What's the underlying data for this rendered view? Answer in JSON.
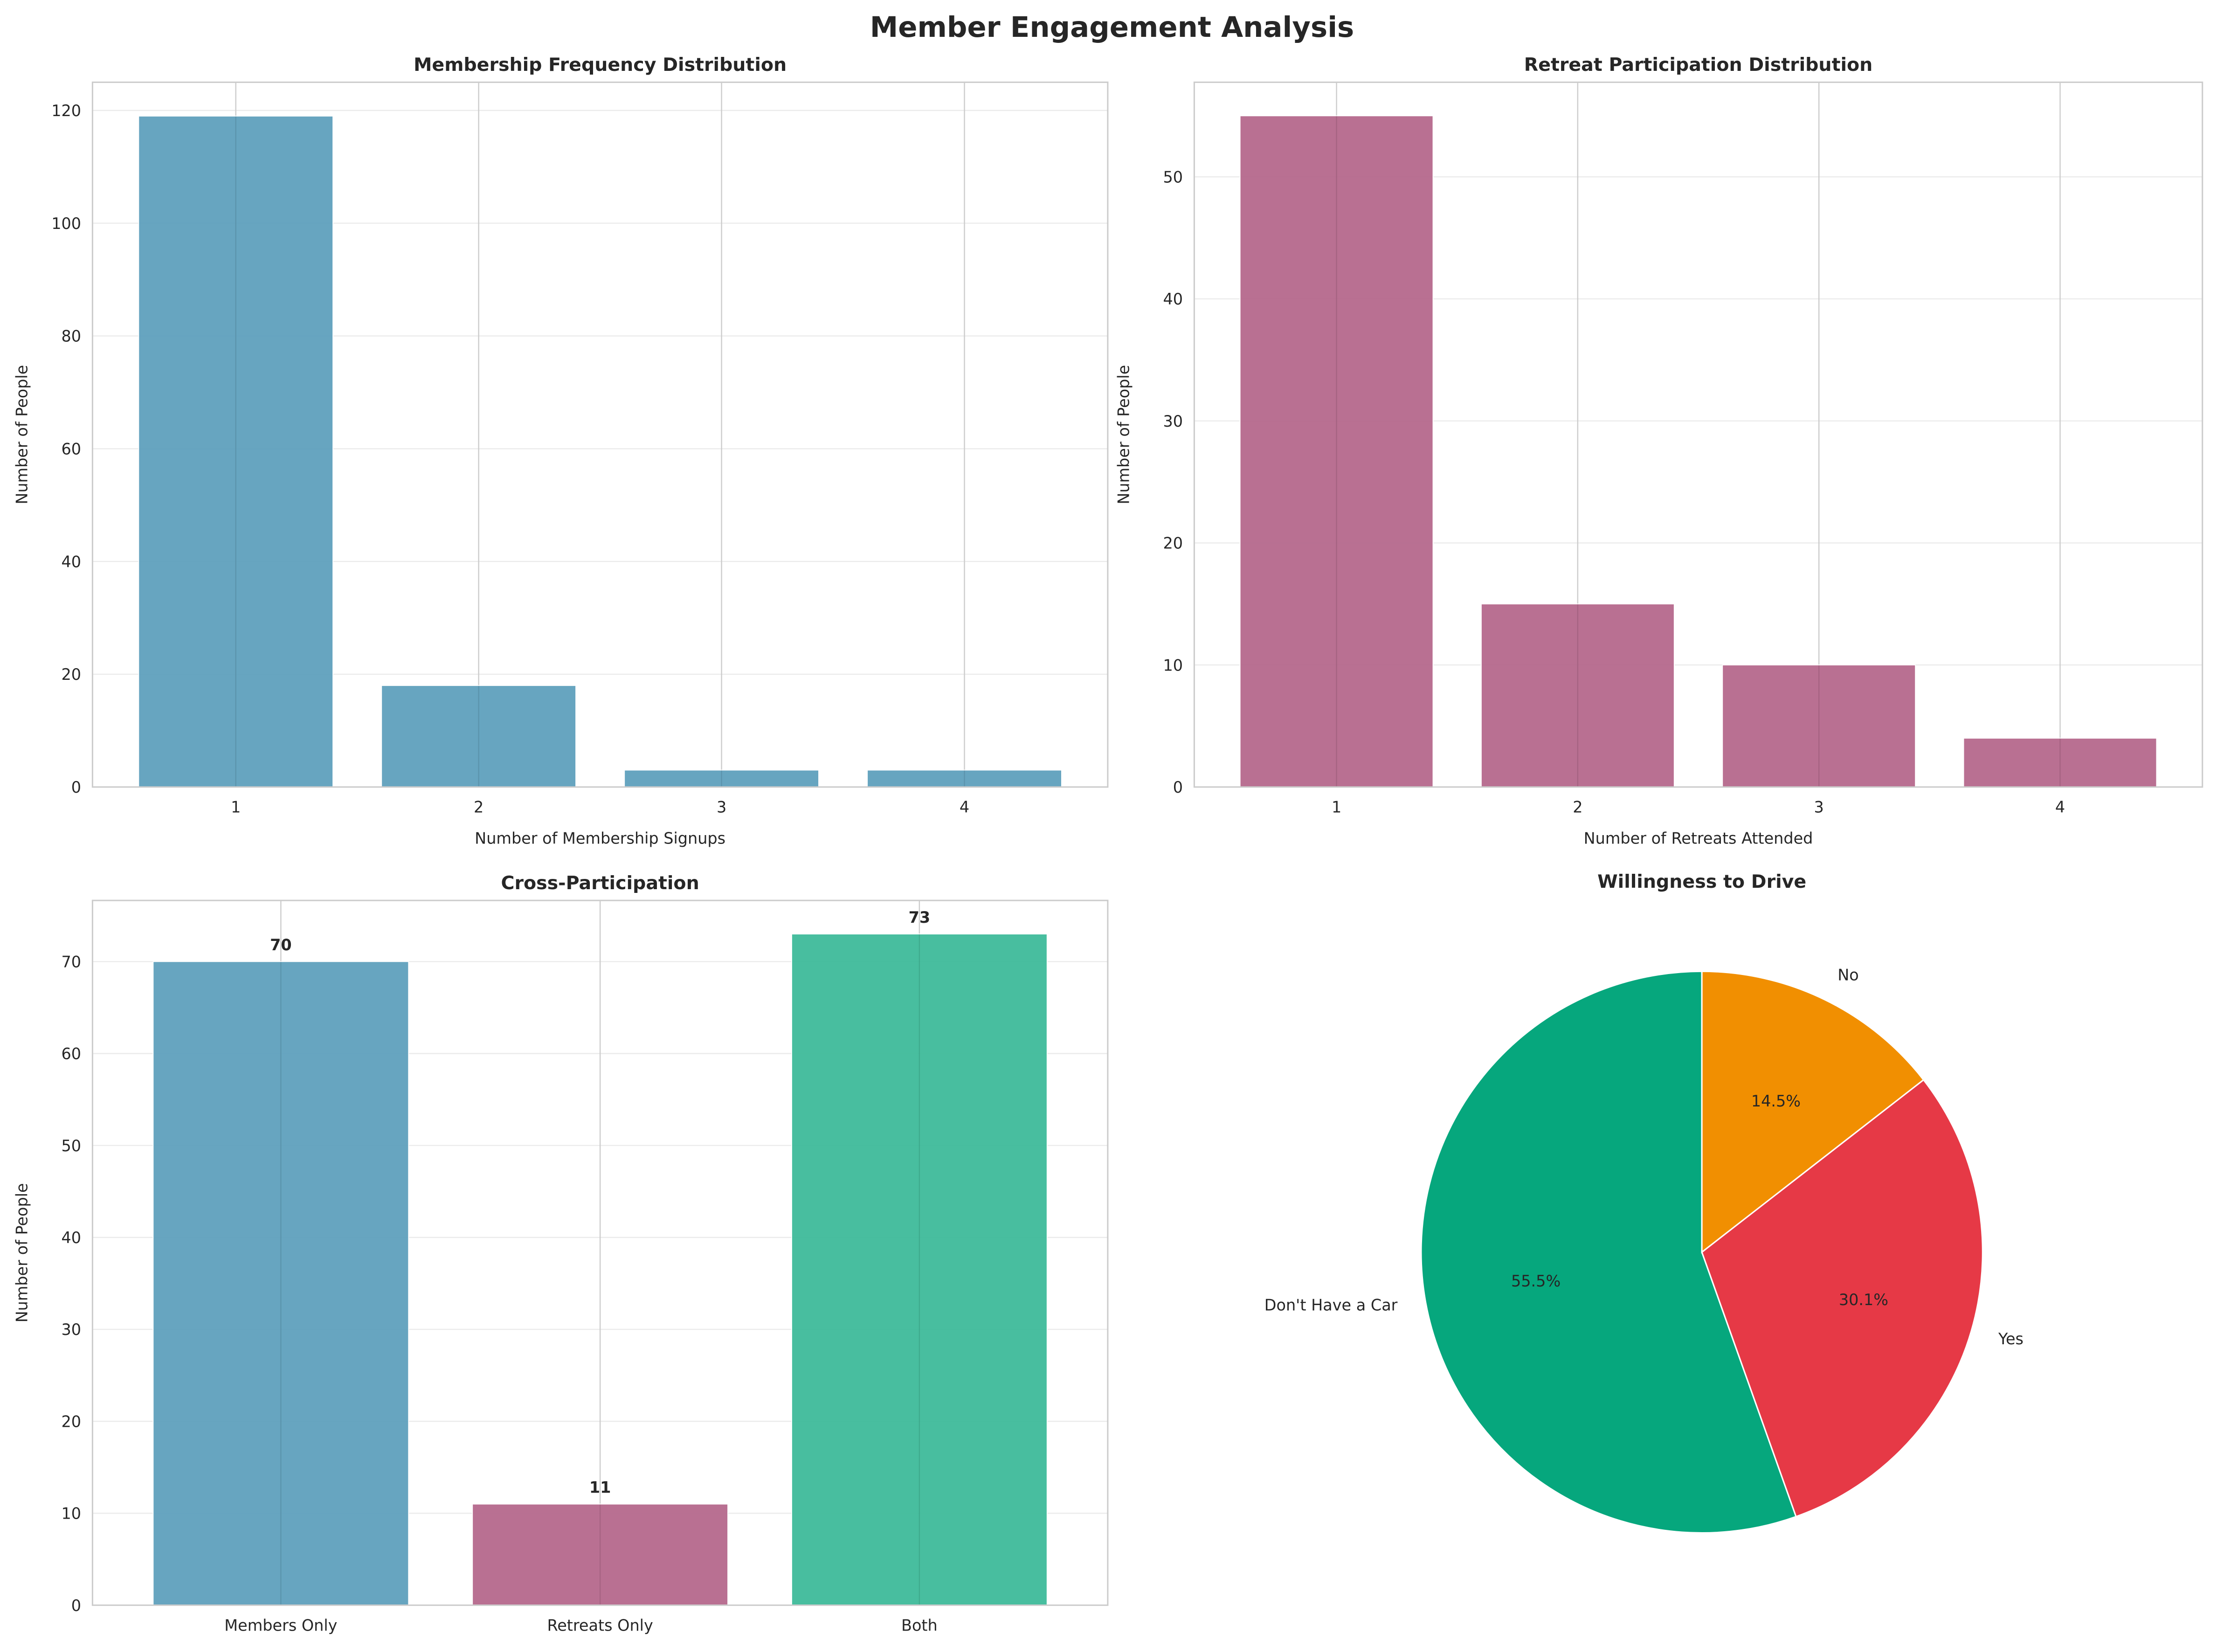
{
  "suptitle": "Member Engagement Analysis",
  "chart_data": [
    {
      "type": "bar",
      "title": "Membership Frequency Distribution",
      "xlabel": "Number of Membership Signups",
      "ylabel": "Number of People",
      "categories": [
        "1",
        "2",
        "3",
        "4"
      ],
      "values": [
        119,
        18,
        3,
        3
      ],
      "ylim": [
        0,
        125
      ],
      "yticks": [
        0,
        20,
        40,
        60,
        80,
        100,
        120
      ],
      "color": "#5a9dbb",
      "grid": true
    },
    {
      "type": "bar",
      "title": "Retreat Participation Distribution",
      "xlabel": "Number of Retreats Attended",
      "ylabel": "Number of People",
      "categories": [
        "1",
        "2",
        "3",
        "4"
      ],
      "values": [
        55,
        15,
        10,
        4
      ],
      "ylim": [
        0,
        57.75
      ],
      "yticks": [
        0,
        10,
        20,
        30,
        40,
        50
      ],
      "color": "#b36489",
      "grid": true
    },
    {
      "type": "bar",
      "title": "Cross-Participation",
      "xlabel": "",
      "ylabel": "Number of People",
      "categories": [
        "Members Only",
        "Retreats Only",
        "Both"
      ],
      "values": [
        70,
        11,
        73
      ],
      "data_labels": [
        "70",
        "11",
        "73"
      ],
      "ylim": [
        0,
        76.65
      ],
      "yticks": [
        0,
        10,
        20,
        30,
        40,
        50,
        60,
        70
      ],
      "colors": [
        "#5a9dbb",
        "#b36489",
        "#38b997"
      ],
      "grid": true
    },
    {
      "type": "pie",
      "title": "Willingness to Drive",
      "labels": [
        "Don't Have a Car",
        "Yes",
        "No"
      ],
      "values": [
        55.5,
        30.1,
        14.5
      ],
      "pct_labels": [
        "55.5%",
        "30.1%",
        "14.5%"
      ],
      "colors": [
        "#06a77d",
        "#e63946",
        "#f18f01"
      ],
      "start_angle": 90
    }
  ]
}
